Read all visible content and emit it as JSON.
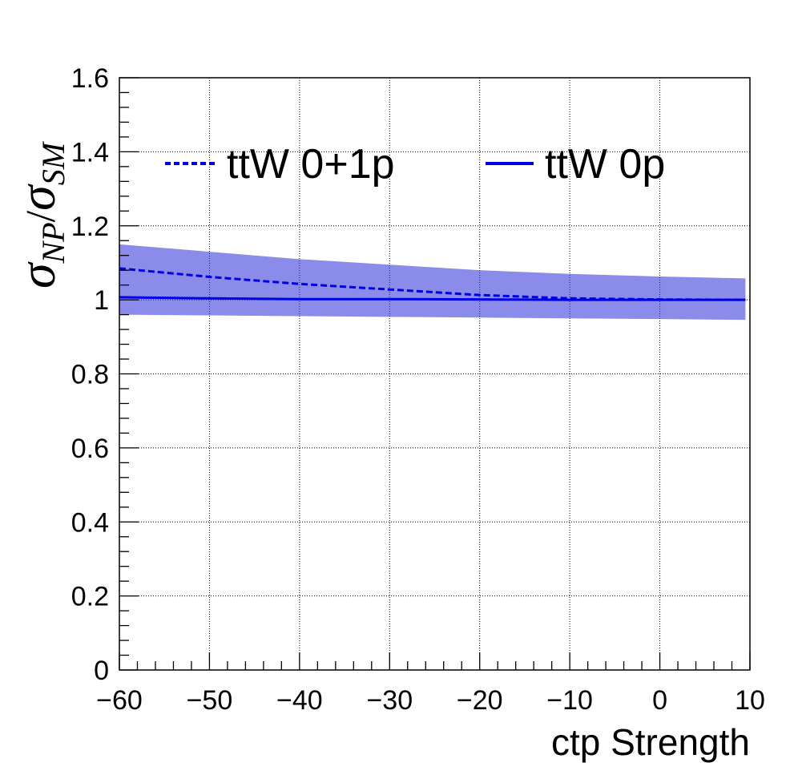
{
  "chart_data": {
    "type": "line",
    "xlabel": "ctp Strength",
    "ylabel": {
      "sigma": "σ",
      "num_sub": "NP",
      "slash": "/",
      "den_sub": "SM"
    },
    "xlim": [
      -60,
      10
    ],
    "ylim": [
      0,
      1.6
    ],
    "x_ticks": [
      -60,
      -50,
      -40,
      -30,
      -20,
      -10,
      0,
      10
    ],
    "x_tick_labels": [
      "−60",
      "−50",
      "−40",
      "−30",
      "−20",
      "−10",
      "0",
      "10"
    ],
    "y_ticks": [
      0,
      0.2,
      0.4,
      0.6,
      0.8,
      1,
      1.2,
      1.4,
      1.6
    ],
    "y_tick_labels": [
      "0",
      "0.2",
      "0.4",
      "0.6",
      "0.8",
      "1",
      "1.2",
      "1.4",
      "1.6"
    ],
    "grid": true,
    "legend_position": "top",
    "colors": {
      "series": "#0000e6",
      "band": "#2b2bd9",
      "axis": "#000000"
    },
    "series": [
      {
        "name": "ttW 0+1p",
        "style": "dashed",
        "x": [
          -60,
          -50,
          -40,
          -30,
          -20,
          -10,
          0,
          9.5
        ],
        "y": [
          1.085,
          1.062,
          1.043,
          1.028,
          1.013,
          1.004,
          1.001,
          1.0
        ],
        "band_low": [
          0.96,
          0.958,
          0.956,
          0.954,
          0.952,
          0.95,
          0.948,
          0.946
        ],
        "band_high": [
          1.15,
          1.13,
          1.11,
          1.095,
          1.08,
          1.07,
          1.063,
          1.058
        ]
      },
      {
        "name": "ttW 0p",
        "style": "solid",
        "x": [
          -60,
          -50,
          -40,
          -30,
          -20,
          -10,
          0,
          9.5
        ],
        "y": [
          1.007,
          1.004,
          1.002,
          1.002,
          1.001,
          1.0,
          1.0,
          1.0
        ]
      }
    ]
  }
}
